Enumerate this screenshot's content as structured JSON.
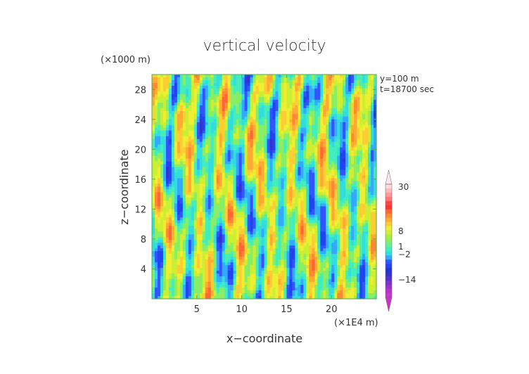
{
  "chart_data": {
    "type": "heatmap",
    "title": "vertical velocity",
    "xlabel": "x−coordinate",
    "ylabel": "z−coordinate",
    "x_unit": "(×1E4 m)",
    "y_unit": "(×1000 m)",
    "xlim": [
      0,
      25
    ],
    "ylim": [
      0,
      30
    ],
    "x_ticks": [
      "5",
      "10",
      "15",
      "20"
    ],
    "x_tick_values": [
      5,
      10,
      15,
      20
    ],
    "y_ticks": [
      "4",
      "8",
      "12",
      "16",
      "20",
      "24",
      "28"
    ],
    "y_tick_values": [
      4,
      8,
      12,
      16,
      20,
      24,
      28
    ],
    "annotations": [
      "y=100 m",
      "t=18700 sec"
    ],
    "colorbar": {
      "labels": [
        "30",
        "8",
        "1",
        "−2",
        "−14"
      ],
      "label_values": [
        30,
        8,
        1,
        -2,
        -14
      ],
      "levels": [
        -30,
        -26,
        -22,
        -18,
        -14,
        -10,
        -6,
        -3,
        -2,
        -1,
        0,
        0.5,
        1,
        2,
        3,
        4,
        5,
        6,
        7,
        8,
        12,
        16,
        20,
        24,
        28,
        30,
        34
      ],
      "colors": [
        "#cc33cc",
        "#b833cc",
        "#9933cc",
        "#7a33cc",
        "#5533cc",
        "#3333cc",
        "#2233dd",
        "#2244ee",
        "#3355ff",
        "#33aaff",
        "#33dddd",
        "#44eebb",
        "#66ee99",
        "#88ee66",
        "#aaee44",
        "#ccee33",
        "#eeee33",
        "#ffcc33",
        "#ffaa33",
        "#ff8833",
        "#ff6633",
        "#ff3333",
        "#ff4444",
        "#ff7777",
        "#ff9999",
        "#ffbbbb",
        "#ffdddd"
      ],
      "extend": "both"
    }
  }
}
